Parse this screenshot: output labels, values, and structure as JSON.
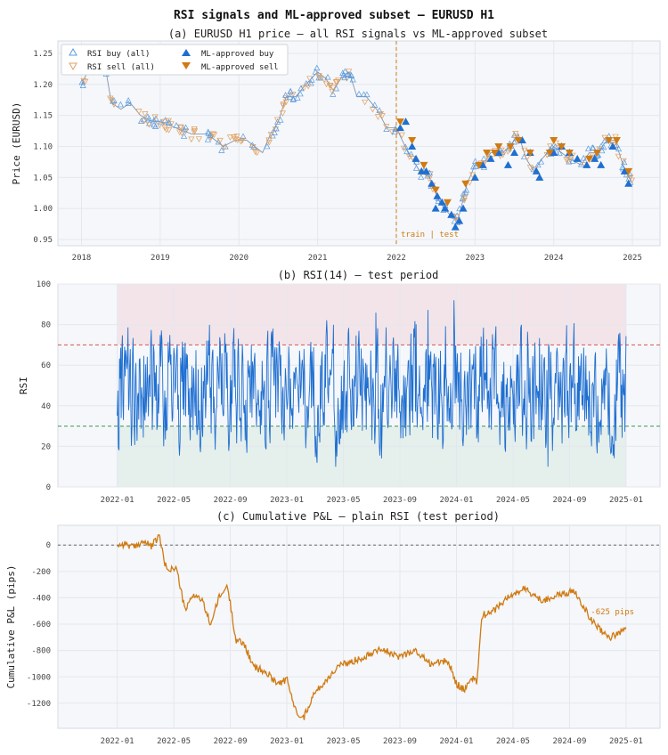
{
  "figure_title": "RSI signals and ML-approved subset — EURUSD H1",
  "colors": {
    "blue": "#1f6fd1",
    "blue_light": "#5b9be0",
    "orange": "#d07a12",
    "orange_light": "#e0a060",
    "panel_bg": "#f5f7fa",
    "grid": "#e4e8ee",
    "red": "#d9534f",
    "green": "#3c9a50"
  },
  "chart_data": [
    {
      "type": "line",
      "title": "(a) EURUSD H1 price — all RSI signals vs ML-approved subset",
      "xlabel": "",
      "ylabel": "Price (EURUSD)",
      "xlim": [
        2017.7,
        2025.35
      ],
      "ylim": [
        0.94,
        1.27
      ],
      "x_ticks": [
        "2018",
        "2019",
        "2020",
        "2021",
        "2022",
        "2023",
        "2024",
        "2025"
      ],
      "y_ticks": [
        "0.95",
        "1.00",
        "1.05",
        "1.10",
        "1.15",
        "1.20",
        "1.25"
      ],
      "grid": true,
      "legend": {
        "position": "top-left",
        "entries": [
          "RSI buy (all)",
          "RSI sell (all)",
          "ML-approved buy",
          "ML-approved sell"
        ]
      },
      "annotation": {
        "text": "train | test",
        "x": 2022.0
      },
      "series": [
        {
          "name": "price",
          "x": [
            2018.0,
            2018.15,
            2018.3,
            2018.38,
            2018.5,
            2018.62,
            2018.75,
            2018.9,
            2019.0,
            2019.2,
            2019.4,
            2019.6,
            2019.8,
            2019.95,
            2020.1,
            2020.2,
            2020.3,
            2020.4,
            2020.5,
            2020.6,
            2020.72,
            2020.85,
            2021.0,
            2021.1,
            2021.2,
            2021.3,
            2021.4,
            2021.5,
            2021.62,
            2021.75,
            2021.88,
            2022.0,
            2022.15,
            2022.3,
            2022.42,
            2022.55,
            2022.68,
            2022.78,
            2022.9,
            2023.0,
            2023.1,
            2023.2,
            2023.35,
            2023.45,
            2023.55,
            2023.65,
            2023.75,
            2023.85,
            2024.0,
            2024.1,
            2024.2,
            2024.35,
            2024.45,
            2024.55,
            2024.68,
            2024.78,
            2024.88,
            2025.0
          ],
          "values": [
            1.2,
            1.24,
            1.23,
            1.17,
            1.16,
            1.17,
            1.15,
            1.14,
            1.14,
            1.13,
            1.12,
            1.12,
            1.1,
            1.11,
            1.11,
            1.1,
            1.09,
            1.12,
            1.14,
            1.18,
            1.18,
            1.2,
            1.22,
            1.21,
            1.19,
            1.21,
            1.22,
            1.18,
            1.18,
            1.16,
            1.13,
            1.13,
            1.09,
            1.06,
            1.05,
            1.01,
            0.99,
            0.98,
            1.04,
            1.07,
            1.07,
            1.09,
            1.09,
            1.1,
            1.12,
            1.08,
            1.06,
            1.08,
            1.1,
            1.09,
            1.08,
            1.07,
            1.09,
            1.09,
            1.11,
            1.11,
            1.07,
            1.04
          ]
        },
        {
          "name": "ML-approved buy",
          "x": [
            2022.05,
            2022.12,
            2022.2,
            2022.25,
            2022.32,
            2022.38,
            2022.45,
            2022.5,
            2022.52,
            2022.58,
            2022.62,
            2022.7,
            2022.75,
            2022.8,
            2022.85,
            2023.0,
            2023.1,
            2023.2,
            2023.3,
            2023.42,
            2023.5,
            2023.6,
            2023.7,
            2023.78,
            2023.82,
            2024.0,
            2024.1,
            2024.2,
            2024.3,
            2024.42,
            2024.52,
            2024.6,
            2024.75,
            2024.9,
            2024.95
          ],
          "values": [
            1.13,
            1.14,
            1.1,
            1.08,
            1.06,
            1.06,
            1.04,
            1.0,
            1.02,
            1.01,
            1.0,
            0.99,
            0.97,
            0.98,
            1.0,
            1.05,
            1.07,
            1.08,
            1.09,
            1.07,
            1.09,
            1.11,
            1.09,
            1.06,
            1.05,
            1.09,
            1.1,
            1.09,
            1.08,
            1.07,
            1.08,
            1.07,
            1.1,
            1.06,
            1.04
          ]
        },
        {
          "name": "ML-approved sell",
          "x": [
            2022.05,
            2022.2,
            2022.35,
            2022.5,
            2022.65,
            2022.88,
            2023.05,
            2023.15,
            2023.25,
            2023.3,
            2023.45,
            2023.55,
            2023.7,
            2023.95,
            2024.0,
            2024.1,
            2024.2,
            2024.45,
            2024.55,
            2024.7,
            2024.8,
            2024.95
          ],
          "values": [
            1.14,
            1.11,
            1.07,
            1.03,
            1.01,
            1.04,
            1.07,
            1.09,
            1.09,
            1.1,
            1.1,
            1.11,
            1.09,
            1.09,
            1.11,
            1.1,
            1.09,
            1.08,
            1.09,
            1.11,
            1.11,
            1.06
          ]
        }
      ]
    },
    {
      "type": "line",
      "title": "(b) RSI(14) — test period",
      "xlabel": "",
      "ylabel": "RSI",
      "xlim": [
        2021.65,
        2025.2
      ],
      "ylim": [
        0,
        100
      ],
      "x_ticks": [
        "2022-01",
        "2022-05",
        "2022-09",
        "2023-01",
        "2023-05",
        "2023-09",
        "2024-01",
        "2024-05",
        "2024-09",
        "2025-01"
      ],
      "y_ticks": [
        "0",
        "20",
        "40",
        "60",
        "80",
        "100"
      ],
      "overbought": 70,
      "oversold": 30,
      "grid": true,
      "series": [
        {
          "name": "RSI(14)",
          "range": [
            10,
            92
          ],
          "center": 48
        }
      ]
    },
    {
      "type": "line",
      "title": "(c) Cumulative P&L — plain RSI (test period)",
      "xlabel": "",
      "ylabel": "Cumulative P&L (pips)",
      "xlim": [
        2021.65,
        2025.2
      ],
      "ylim": [
        -1390,
        150
      ],
      "x_ticks": [
        "2022-01",
        "2022-05",
        "2022-09",
        "2023-01",
        "2023-05",
        "2023-09",
        "2024-01",
        "2024-05",
        "2024-09",
        "2025-01"
      ],
      "y_ticks": [
        "0",
        "-200",
        "-400",
        "-600",
        "-800",
        "-1000",
        "-1200"
      ],
      "annotation": {
        "text": "-625 pips",
        "x": 2024.92,
        "y": -525
      },
      "grid": true,
      "series": [
        {
          "name": "Cumulative P&L",
          "x": [
            2022.0,
            2022.05,
            2022.1,
            2022.15,
            2022.2,
            2022.25,
            2022.28,
            2022.3,
            2022.35,
            2022.4,
            2022.45,
            2022.5,
            2022.55,
            2022.6,
            2022.65,
            2022.7,
            2022.75,
            2022.8,
            2022.85,
            2022.9,
            2022.95,
            2023.0,
            2023.05,
            2023.1,
            2023.15,
            2023.18,
            2023.25,
            2023.3,
            2023.35,
            2023.45,
            2023.55,
            2023.65,
            2023.75,
            2023.85,
            2023.95,
            2024.0,
            2024.05,
            2024.1,
            2024.12,
            2024.15,
            2024.2,
            2024.3,
            2024.4,
            2024.5,
            2024.6,
            2024.7,
            2024.8,
            2024.9,
            2024.95,
            2025.0
          ],
          "values": [
            0,
            10,
            -20,
            30,
            -10,
            70,
            -150,
            -180,
            -180,
            -500,
            -370,
            -420,
            -600,
            -400,
            -310,
            -720,
            -750,
            -920,
            -950,
            -990,
            -1050,
            -1020,
            -1250,
            -1310,
            -1150,
            -1100,
            -1000,
            -920,
            -900,
            -850,
            -780,
            -850,
            -800,
            -900,
            -880,
            -1050,
            -1100,
            -1000,
            -1050,
            -530,
            -520,
            -400,
            -330,
            -420,
            -380,
            -350,
            -580,
            -700,
            -680,
            -625
          ]
        }
      ]
    }
  ]
}
